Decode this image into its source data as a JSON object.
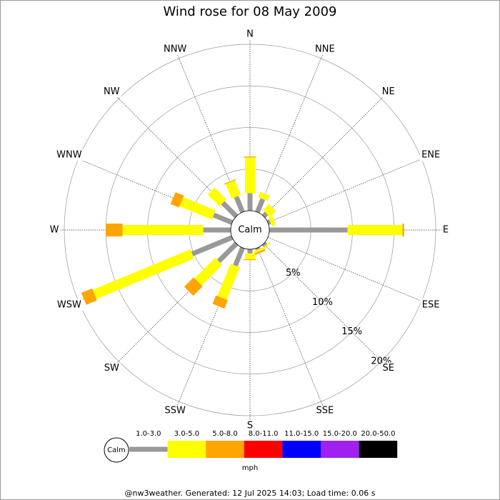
{
  "chart_data": {
    "type": "windrose",
    "title": "Wind rose for 08 May 2009",
    "categories": [
      "N",
      "NNE",
      "NE",
      "ENE",
      "E",
      "ESE",
      "SE",
      "SSE",
      "S",
      "SSW",
      "SW",
      "WSW",
      "W",
      "WNW",
      "NW",
      "NNW"
    ],
    "series": [
      {
        "name": "1.0-3.0",
        "color": "#999999",
        "values": [
          2.1,
          1.7,
          0.5,
          0.3,
          9.4,
          0,
          0.3,
          0.2,
          0.5,
          2.3,
          3.0,
          5.2,
          3.3,
          2.4,
          2.3,
          2.0
        ]
      },
      {
        "name": "3.0-5.0",
        "color": "#ffff00",
        "values": [
          4.3,
          0.7,
          1.0,
          0.5,
          6.6,
          0,
          0.2,
          0.3,
          0.7,
          4.2,
          3.5,
          12.7,
          9.7,
          4.2,
          2.0,
          1.9
        ]
      },
      {
        "name": "5.0-8.0",
        "color": "#ffa500",
        "values": [
          0.1,
          0,
          0,
          0,
          0.2,
          0,
          0,
          0.2,
          0.1,
          1.1,
          1.6,
          1.4,
          2.0,
          1.1,
          0,
          0.1
        ]
      },
      {
        "name": "8.0-11.0",
        "color": "#ff0000",
        "values": [
          0,
          0,
          0,
          0,
          0,
          0,
          0,
          0,
          0,
          0,
          0,
          0,
          0,
          0,
          0,
          0
        ]
      },
      {
        "name": "11.0-15.0",
        "color": "#0000ff",
        "values": [
          0,
          0,
          0,
          0,
          0,
          0,
          0,
          0,
          0,
          0,
          0,
          0,
          0,
          0,
          0,
          0
        ]
      },
      {
        "name": "15.0-20.0",
        "color": "#a020f0",
        "values": [
          0,
          0,
          0,
          0,
          0,
          0,
          0,
          0,
          0,
          0,
          0,
          0,
          0,
          0,
          0,
          0
        ]
      },
      {
        "name": "20.0-50.0",
        "color": "#000000",
        "values": [
          0,
          0,
          0,
          0,
          0,
          0,
          0,
          0,
          0,
          0,
          0,
          0,
          0,
          0,
          0,
          0
        ]
      }
    ],
    "calm_label": "Calm",
    "ylim": [
      0,
      20
    ],
    "yticks": [
      {
        "value": 5,
        "label": "5%"
      },
      {
        "value": 10,
        "label": "10%"
      },
      {
        "value": 15,
        "label": "15%"
      },
      {
        "value": 20,
        "label": "20%"
      }
    ],
    "unit": "mph",
    "footer": "@nw3weather. Generated: 12 Jul 2025 14:03; Load time: 0.06 s"
  }
}
